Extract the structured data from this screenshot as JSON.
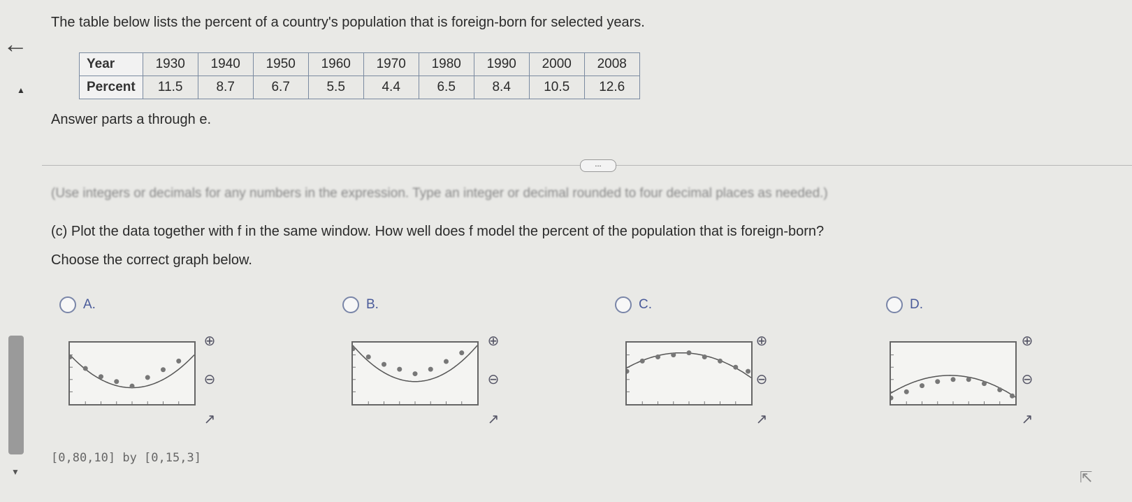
{
  "intro": "The table below lists the percent of a country's population that is foreign-born for selected years.",
  "table": {
    "row_headers": [
      "Year",
      "Percent"
    ],
    "years": [
      "1930",
      "1940",
      "1950",
      "1960",
      "1970",
      "1980",
      "1990",
      "2000",
      "2008"
    ],
    "percents": [
      "11.5",
      "8.7",
      "6.7",
      "5.5",
      "4.4",
      "6.5",
      "8.4",
      "10.5",
      "12.6"
    ]
  },
  "answer_parts": "Answer parts a through e.",
  "more_button": "...",
  "hint": "(Use integers or decimals for any numbers in the expression. Type an integer or decimal rounded to four decimal places as needed.)",
  "question_c": "(c) Plot the data together with f in the same window. How well does f model the percent of the population that is foreign-born?",
  "choose": "Choose the correct graph below.",
  "window": "[0,80,10] by [0,15,3]",
  "options": [
    {
      "label": "A.",
      "curve": {
        "a": 0.005,
        "h": 40,
        "k": 4
      },
      "points": [
        [
          0,
          11.5
        ],
        [
          10,
          8.7
        ],
        [
          20,
          6.7
        ],
        [
          30,
          5.5
        ],
        [
          40,
          4.4
        ],
        [
          50,
          6.5
        ],
        [
          60,
          8.4
        ],
        [
          70,
          10.5
        ]
      ]
    },
    {
      "label": "B.",
      "curve": {
        "a": 0.0055,
        "h": 40,
        "k": 5.5
      },
      "points": [
        [
          0,
          13.5
        ],
        [
          10,
          11.5
        ],
        [
          20,
          9.7
        ],
        [
          30,
          8.5
        ],
        [
          40,
          7.4
        ],
        [
          50,
          8.5
        ],
        [
          60,
          10.4
        ],
        [
          70,
          12.5
        ]
      ]
    },
    {
      "label": "C.",
      "curve": {
        "a": -0.003,
        "h": 35,
        "k": 12.5
      },
      "points": [
        [
          0,
          8
        ],
        [
          10,
          10.5
        ],
        [
          20,
          11.5
        ],
        [
          30,
          12
        ],
        [
          40,
          12.5
        ],
        [
          50,
          11.5
        ],
        [
          60,
          10.5
        ],
        [
          70,
          9
        ],
        [
          78,
          8
        ]
      ]
    },
    {
      "label": "D.",
      "curve": {
        "a": -0.003,
        "h": 38,
        "k": 7
      },
      "points": [
        [
          0,
          1.5
        ],
        [
          10,
          3
        ],
        [
          20,
          4.5
        ],
        [
          30,
          5.5
        ],
        [
          40,
          6
        ],
        [
          50,
          6
        ],
        [
          60,
          5
        ],
        [
          70,
          3.5
        ],
        [
          78,
          2
        ]
      ]
    }
  ],
  "icons": {
    "back": "arrow-left-icon",
    "zoom_in": "zoom-in-icon",
    "zoom_out": "zoom-out-icon",
    "popout": "external-link-icon"
  }
}
